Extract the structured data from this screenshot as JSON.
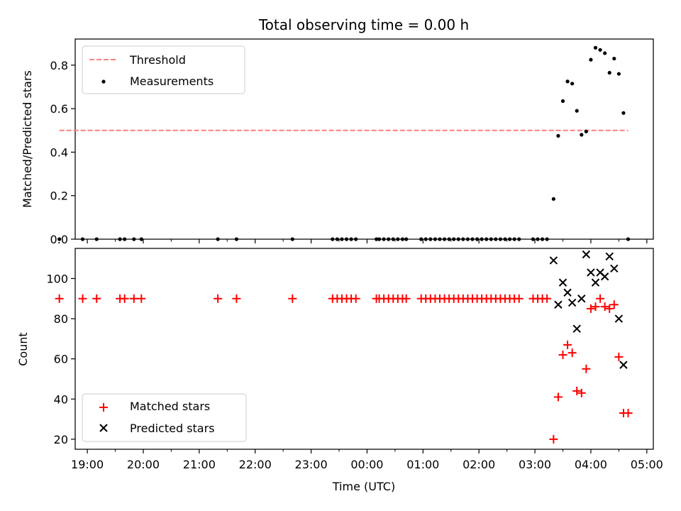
{
  "chart_data": [
    {
      "type": "scatter",
      "title": "Total observing time = 0.00 h",
      "xlabel": "",
      "ylabel": "Matched/Predicted stars",
      "ylim": [
        0,
        0.92
      ],
      "xlim": [
        "18:47",
        "05:07"
      ],
      "yticks": [
        "0.0",
        "0.2",
        "0.4",
        "0.6",
        "0.8"
      ],
      "grid": false,
      "legend_position": "top-left",
      "legend": [
        "Threshold",
        "Measurements"
      ],
      "threshold": {
        "name": "Threshold",
        "y": 0.5,
        "x": [
          "18:30",
          "04:40"
        ],
        "color": "#ff7f7f",
        "style": "dashed"
      },
      "series": [
        {
          "name": "Measurements",
          "color": "#000000",
          "marker": "dot",
          "points": [
            [
              "18:30",
              0
            ],
            [
              "18:55",
              0
            ],
            [
              "19:10",
              0
            ],
            [
              "19:35",
              0
            ],
            [
              "19:40",
              0
            ],
            [
              "19:50",
              0
            ],
            [
              "19:58",
              0
            ],
            [
              "21:20",
              0
            ],
            [
              "21:40",
              0
            ],
            [
              "22:40",
              0
            ],
            [
              "23:23",
              0
            ],
            [
              "23:28",
              0
            ],
            [
              "23:33",
              0
            ],
            [
              "23:38",
              0
            ],
            [
              "23:43",
              0
            ],
            [
              "23:48",
              0
            ],
            [
              "00:10",
              0
            ],
            [
              "00:13",
              0
            ],
            [
              "00:18",
              0
            ],
            [
              "00:23",
              0
            ],
            [
              "00:28",
              0
            ],
            [
              "00:33",
              0
            ],
            [
              "00:38",
              0
            ],
            [
              "00:42",
              0
            ],
            [
              "00:58",
              0
            ],
            [
              "01:03",
              0
            ],
            [
              "01:08",
              0
            ],
            [
              "01:13",
              0
            ],
            [
              "01:18",
              0
            ],
            [
              "01:23",
              0
            ],
            [
              "01:28",
              0
            ],
            [
              "01:33",
              0
            ],
            [
              "01:38",
              0
            ],
            [
              "01:43",
              0
            ],
            [
              "01:48",
              0
            ],
            [
              "01:53",
              0
            ],
            [
              "01:58",
              0
            ],
            [
              "02:03",
              0
            ],
            [
              "02:08",
              0
            ],
            [
              "02:13",
              0
            ],
            [
              "02:18",
              0
            ],
            [
              "02:23",
              0
            ],
            [
              "02:28",
              0
            ],
            [
              "02:33",
              0
            ],
            [
              "02:38",
              0
            ],
            [
              "02:43",
              0
            ],
            [
              "02:58",
              0
            ],
            [
              "03:03",
              0
            ],
            [
              "03:08",
              0
            ],
            [
              "03:13",
              0
            ],
            [
              "03:20",
              0.185
            ],
            [
              "03:25",
              0.475
            ],
            [
              "03:30",
              0.635
            ],
            [
              "03:35",
              0.725
            ],
            [
              "03:40",
              0.715
            ],
            [
              "03:45",
              0.59
            ],
            [
              "03:50",
              0.48
            ],
            [
              "03:55",
              0.495
            ],
            [
              "04:00",
              0.825
            ],
            [
              "04:05",
              0.88
            ],
            [
              "04:10",
              0.87
            ],
            [
              "04:15",
              0.855
            ],
            [
              "04:20",
              0.765
            ],
            [
              "04:25",
              0.83
            ],
            [
              "04:30",
              0.76
            ],
            [
              "04:35",
              0.58
            ],
            [
              "04:40",
              0
            ]
          ]
        }
      ]
    },
    {
      "type": "scatter",
      "title": "",
      "xlabel": "Time (UTC)",
      "ylabel": "Count",
      "ylim": [
        15,
        115
      ],
      "xlim": [
        "18:47",
        "05:07"
      ],
      "yticks": [
        "20",
        "40",
        "60",
        "80",
        "100"
      ],
      "xticks": [
        "19:00",
        "20:00",
        "21:00",
        "22:00",
        "23:00",
        "00:00",
        "01:00",
        "02:00",
        "03:00",
        "04:00",
        "05:00"
      ],
      "grid": false,
      "legend_position": "bottom-left",
      "legend": [
        "Matched stars",
        "Predicted stars"
      ],
      "series": [
        {
          "name": "Matched stars",
          "color": "#ff0000",
          "marker": "plus",
          "points": [
            [
              "18:30",
              90
            ],
            [
              "18:55",
              90
            ],
            [
              "19:10",
              90
            ],
            [
              "19:35",
              90
            ],
            [
              "19:40",
              90
            ],
            [
              "19:50",
              90
            ],
            [
              "19:58",
              90
            ],
            [
              "21:20",
              90
            ],
            [
              "21:40",
              90
            ],
            [
              "22:40",
              90
            ],
            [
              "23:23",
              90
            ],
            [
              "23:28",
              90
            ],
            [
              "23:33",
              90
            ],
            [
              "23:38",
              90
            ],
            [
              "23:43",
              90
            ],
            [
              "23:48",
              90
            ],
            [
              "00:10",
              90
            ],
            [
              "00:13",
              90
            ],
            [
              "00:18",
              90
            ],
            [
              "00:23",
              90
            ],
            [
              "00:28",
              90
            ],
            [
              "00:33",
              90
            ],
            [
              "00:38",
              90
            ],
            [
              "00:42",
              90
            ],
            [
              "00:58",
              90
            ],
            [
              "01:03",
              90
            ],
            [
              "01:08",
              90
            ],
            [
              "01:13",
              90
            ],
            [
              "01:18",
              90
            ],
            [
              "01:23",
              90
            ],
            [
              "01:28",
              90
            ],
            [
              "01:33",
              90
            ],
            [
              "01:38",
              90
            ],
            [
              "01:43",
              90
            ],
            [
              "01:48",
              90
            ],
            [
              "01:53",
              90
            ],
            [
              "01:58",
              90
            ],
            [
              "02:03",
              90
            ],
            [
              "02:08",
              90
            ],
            [
              "02:13",
              90
            ],
            [
              "02:18",
              90
            ],
            [
              "02:23",
              90
            ],
            [
              "02:28",
              90
            ],
            [
              "02:33",
              90
            ],
            [
              "02:38",
              90
            ],
            [
              "02:43",
              90
            ],
            [
              "02:58",
              90
            ],
            [
              "03:03",
              90
            ],
            [
              "03:08",
              90
            ],
            [
              "03:13",
              90
            ],
            [
              "03:20",
              20
            ],
            [
              "03:25",
              41
            ],
            [
              "03:30",
              62
            ],
            [
              "03:35",
              67
            ],
            [
              "03:40",
              63
            ],
            [
              "03:45",
              44
            ],
            [
              "03:50",
              43
            ],
            [
              "03:55",
              55
            ],
            [
              "04:00",
              85
            ],
            [
              "04:05",
              86
            ],
            [
              "04:10",
              90
            ],
            [
              "04:15",
              86
            ],
            [
              "04:20",
              85
            ],
            [
              "04:25",
              87
            ],
            [
              "04:30",
              61
            ],
            [
              "04:35",
              33
            ],
            [
              "04:40",
              33
            ]
          ]
        },
        {
          "name": "Predicted stars",
          "color": "#000000",
          "marker": "cross",
          "points": [
            [
              "03:20",
              109
            ],
            [
              "03:25",
              87
            ],
            [
              "03:30",
              98
            ],
            [
              "03:35",
              93
            ],
            [
              "03:40",
              88
            ],
            [
              "03:45",
              75
            ],
            [
              "03:50",
              90
            ],
            [
              "03:55",
              112
            ],
            [
              "04:00",
              103
            ],
            [
              "04:05",
              98
            ],
            [
              "04:10",
              103
            ],
            [
              "04:15",
              101
            ],
            [
              "04:20",
              111
            ],
            [
              "04:25",
              105
            ],
            [
              "04:30",
              80
            ],
            [
              "04:35",
              57
            ]
          ]
        }
      ]
    }
  ]
}
